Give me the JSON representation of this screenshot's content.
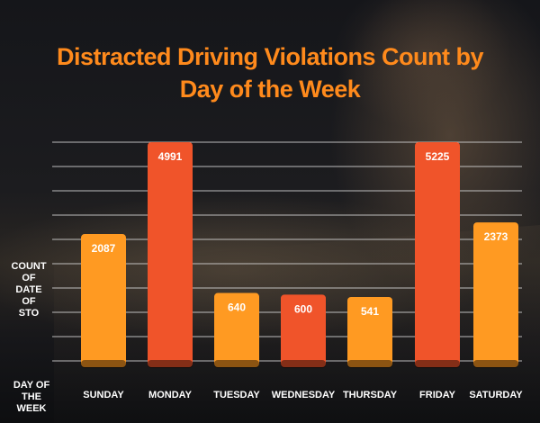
{
  "title_lines": [
    "Distracted Driving Violations Count by",
    "Day of the Week"
  ],
  "y_axis_label_lines": [
    "COUNT",
    "OF",
    "DATE",
    "OF",
    "STO"
  ],
  "x_axis_label_lines": [
    "DAY OF",
    "THE WEEK"
  ],
  "colors": {
    "title": "#ff8a1c",
    "bar_orange": "#ff9a22",
    "bar_red": "#f0542a",
    "gridline": "#d9d9d9",
    "label": "#ffffff"
  },
  "chart_data": {
    "type": "bar",
    "title": "Distracted Driving Violations Count by Day of the Week",
    "xlabel": "DAY OF THE WEEK",
    "ylabel": "COUNT OF DATE OF STO",
    "categories": [
      "SUNDAY",
      "MONDAY",
      "TUESDAY",
      "WEDNESDAY",
      "THURSDAY",
      "FRIDAY",
      "SATURDAY"
    ],
    "values": [
      2087,
      4991,
      640,
      600,
      541,
      5225,
      2373
    ],
    "bar_colors": [
      "#ff9a22",
      "#f0542a",
      "#ff9a22",
      "#f0542a",
      "#ff9a22",
      "#f0542a",
      "#ff9a22"
    ],
    "data_labels": [
      "2087",
      "4991",
      "640",
      "600",
      "541",
      "5225",
      "2373"
    ],
    "grid": true,
    "legend": "none"
  }
}
